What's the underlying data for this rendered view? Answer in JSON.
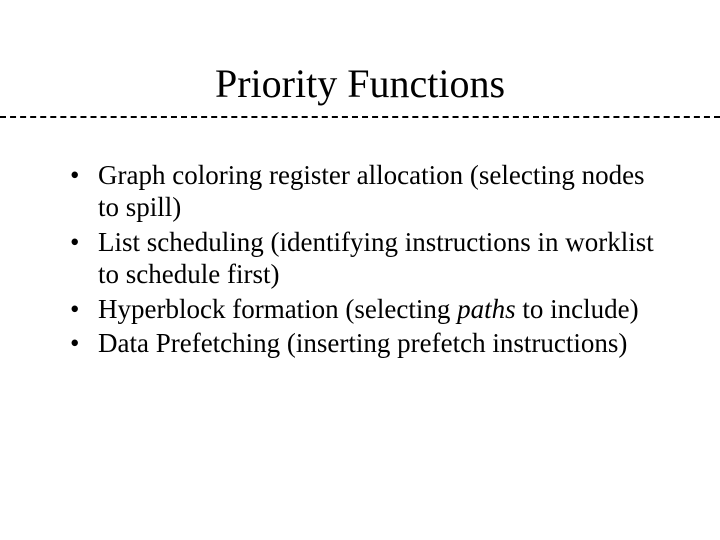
{
  "slide": {
    "title": "Priority Functions",
    "title_fontsize": 40,
    "body_fontsize": 27,
    "font_family": "Times New Roman",
    "background_color": "#ffffff",
    "text_color": "#000000",
    "divider_style": "dashed",
    "divider_color": "#000000",
    "bullets": [
      {
        "pre": "Graph coloring register allocation (selecting ",
        "italic": "",
        "post": "nodes to spill)"
      },
      {
        "pre": "List scheduling (identifying instructions in worklist to schedule first)",
        "italic": "",
        "post": ""
      },
      {
        "pre": "Hyperblock formation (selecting ",
        "italic": "paths",
        "post": " to include)"
      },
      {
        "pre": "Data Prefetching (inserting prefetch instructions)",
        "italic": "",
        "post": ""
      }
    ]
  }
}
